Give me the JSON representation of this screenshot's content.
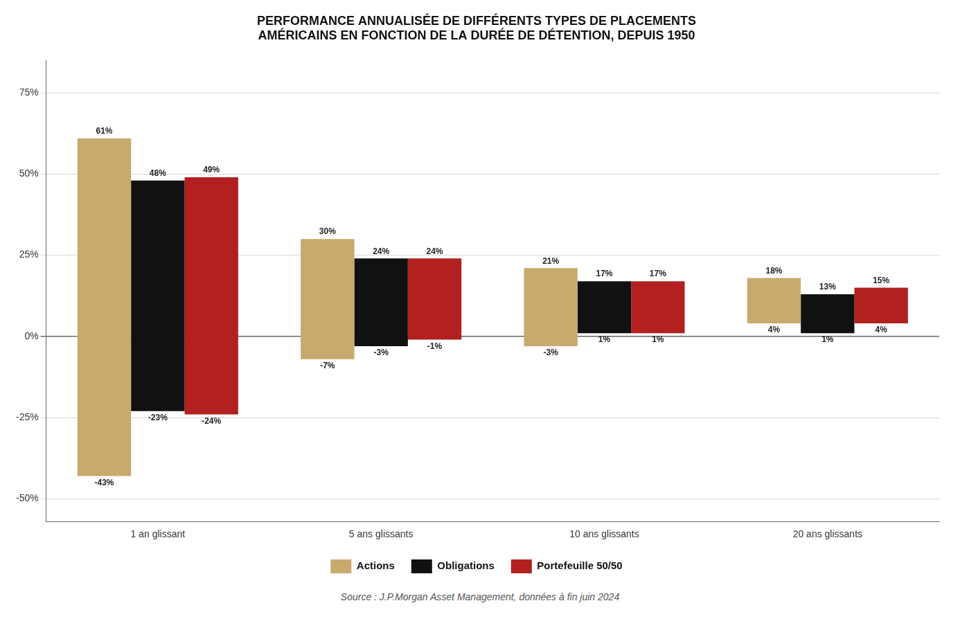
{
  "chart_data": {
    "type": "bar",
    "title": "PERFORMANCE ANNUALISÉE DE DIFFÉRENTS TYPES DE PLACEMENTS\nAMÉRICAINS EN FONCTION DE LA DURÉE DE DÉTENTION, DEPUIS 1950",
    "categories": [
      "1 an glissant",
      "5 ans glissants",
      "10 ans glissants",
      "20 ans glissants"
    ],
    "series": [
      {
        "name": "Actions",
        "color": "#C8A96E",
        "values": [
          [
            -43,
            61
          ],
          [
            -7,
            30
          ],
          [
            -3,
            21
          ],
          [
            4,
            18
          ]
        ],
        "value_labels": [
          [
            "-43%",
            "61%"
          ],
          [
            "-7%",
            "30%"
          ],
          [
            "-3%",
            "21%"
          ],
          [
            "4%",
            "18%"
          ]
        ]
      },
      {
        "name": "Obligations",
        "color": "#111111",
        "values": [
          [
            -23,
            48
          ],
          [
            -3,
            24
          ],
          [
            1,
            17
          ],
          [
            1,
            13
          ]
        ],
        "value_labels": [
          [
            "-23%",
            "48%"
          ],
          [
            "-3%",
            "24%"
          ],
          [
            "1%",
            "17%"
          ],
          [
            "1%",
            "13%"
          ]
        ]
      },
      {
        "name": "Portefeuille 50/50",
        "color": "#B22020",
        "values": [
          [
            -24,
            49
          ],
          [
            -1,
            24
          ],
          [
            1,
            17
          ],
          [
            4,
            15
          ]
        ],
        "value_labels": [
          [
            "-24%",
            "49%"
          ],
          [
            "-1%",
            "24%"
          ],
          [
            "1%",
            "17%"
          ],
          [
            "4%",
            "15%"
          ]
        ]
      }
    ],
    "ylim": [
      -57,
      85
    ],
    "yticks": [
      {
        "value": -50,
        "label": "-50%"
      },
      {
        "value": -25,
        "label": "-25%"
      },
      {
        "value": 0,
        "label": "0%"
      },
      {
        "value": 25,
        "label": "25%"
      },
      {
        "value": 50,
        "label": "50%"
      },
      {
        "value": 75,
        "label": "75%"
      }
    ],
    "grid": true,
    "legend": "bottom",
    "data_labels": true,
    "annotations": [
      "Source : J.P.Morgan Asset Management, données à fin juin 2024"
    ]
  }
}
